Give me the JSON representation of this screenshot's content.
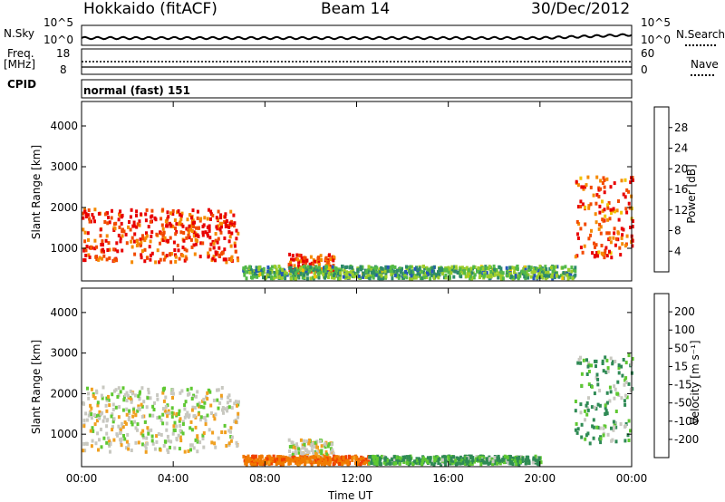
{
  "header": {
    "station": "Hokkaido (fitACF)",
    "beam": "Beam 14",
    "date": "30/Dec/2012"
  },
  "small_panels": {
    "nsky_label": "N.Sky",
    "nsky_ticks": [
      "10^5",
      "10^0"
    ],
    "nsearch_label": "N.Search",
    "nsearch_ticks": [
      "10^5",
      "10^0"
    ],
    "freq_label": "Freq.",
    "freq_unit": "[MHz]",
    "freq_ticks": [
      "18",
      "8"
    ],
    "nave_label": "Nave",
    "nave_ticks": [
      "60",
      "0"
    ],
    "cpid_label": "CPID",
    "cpid_text": "normal (fast) 151"
  },
  "colors": {
    "power_scale": [
      "#1a2bd6",
      "#2456b8",
      "#2e8a6a",
      "#52b848",
      "#9ccd2a",
      "#f2c200",
      "#f58a00",
      "#f24a00",
      "#e80000"
    ],
    "velocity_scale": [
      "#1a2bd6",
      "#2a55b0",
      "#2f8a55",
      "#5fc832",
      "#c8c8c0",
      "#f0a020",
      "#f07a00",
      "#f04000",
      "#e00000"
    ]
  },
  "chart_data": [
    {
      "type": "heatmap",
      "name": "power",
      "ylabel": "Slant Range [km]",
      "yticks": [
        "1000",
        "2000",
        "3000",
        "4000"
      ],
      "ylim": [
        200,
        4600
      ],
      "colorbar_label": "Power [dB]",
      "colorbar_ticks": [
        "4",
        "8",
        "12",
        "16",
        "20",
        "24",
        "28"
      ],
      "approximate_echo_regions": [
        {
          "t_start": 0.0,
          "t_end": 6.8,
          "range_km": [
            700,
            2000
          ],
          "value_db": 28
        },
        {
          "t_start": 9.0,
          "t_end": 11.0,
          "range_km": [
            400,
            900
          ],
          "value_db": 28
        },
        {
          "t_start": 7.0,
          "t_end": 21.5,
          "range_km": [
            300,
            600
          ],
          "value_db": 12
        },
        {
          "t_start": 21.5,
          "t_end": 24.0,
          "range_km": [
            800,
            2800
          ],
          "value_db": 26
        }
      ]
    },
    {
      "type": "heatmap",
      "name": "velocity",
      "xlabel": "Time UT",
      "xticks": [
        "00:00",
        "04:00",
        "08:00",
        "12:00",
        "16:00",
        "20:00",
        "00:00"
      ],
      "ylabel": "Slant Range [km]",
      "yticks": [
        "1000",
        "2000",
        "3000",
        "4000"
      ],
      "ylim": [
        200,
        4600
      ],
      "colorbar_label": "Velocity [m s⁻¹]",
      "colorbar_ticks": [
        "200",
        "100",
        "50",
        "15",
        "-15",
        "-50",
        "-100",
        "-200"
      ],
      "approximate_echo_regions": [
        {
          "t_start": 0.0,
          "t_end": 6.8,
          "range_km": [
            600,
            2200
          ],
          "value_ms": 0
        },
        {
          "t_start": 9.0,
          "t_end": 11.0,
          "range_km": [
            400,
            900
          ],
          "value_ms": 0
        },
        {
          "t_start": 7.0,
          "t_end": 12.5,
          "range_km": [
            300,
            500
          ],
          "value_ms": -60
        },
        {
          "t_start": 12.5,
          "t_end": 20.0,
          "range_km": [
            300,
            500
          ],
          "value_ms": 40
        },
        {
          "t_start": 21.5,
          "t_end": 24.0,
          "range_km": [
            800,
            3000
          ],
          "value_ms": 30
        }
      ]
    }
  ]
}
